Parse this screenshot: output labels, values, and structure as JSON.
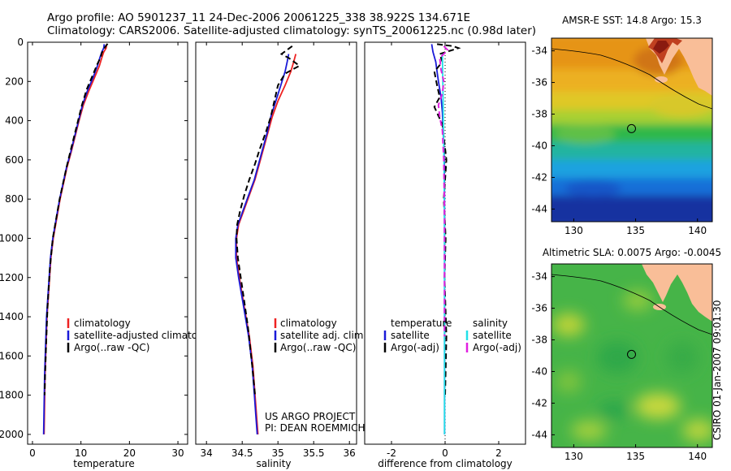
{
  "header": {
    "line1": "Argo profile: AO 5901237_11 24-Dec-2006 20061225_338 38.922S 134.671E",
    "line2": "Climatology: CARS2006. Satellite-adjusted climatology: synTS_20061225.nc (0.98d later)"
  },
  "side_label": "CSIRO 01-Jan-2007 09:01:30",
  "colors": {
    "red": "#ee2222",
    "blue": "#1a1ad8",
    "black": "#000000",
    "cyan": "#22e0e8",
    "magenta": "#e020e0",
    "land": "#f9be98"
  },
  "chart_data": [
    {
      "type": "line",
      "id": "temperature",
      "xlabel": "temperature",
      "ylabel": "",
      "xlim": [
        -1,
        32
      ],
      "ylim": [
        2050,
        0
      ],
      "xticks": [
        0,
        10,
        20,
        30
      ],
      "yticks": [
        0,
        200,
        400,
        600,
        800,
        1000,
        1200,
        1400,
        1600,
        1800,
        2000
      ],
      "legend": [
        "climatology",
        "satellite-adjusted climatolo",
        "Argo(..raw -QC)"
      ],
      "series": [
        {
          "name": "climatology",
          "color": "#ee2222",
          "style": "solid",
          "x": [
            15.3,
            15.2,
            14.7,
            14.3,
            13.8,
            12.8,
            11.6,
            10.5,
            9.6,
            8.8,
            8.0,
            7.1,
            6.4,
            5.7,
            5.0,
            4.3,
            3.8,
            3.4,
            3.0,
            2.8,
            2.6,
            2.5,
            2.4
          ],
          "y": [
            10,
            30,
            50,
            80,
            120,
            180,
            250,
            320,
            400,
            480,
            560,
            640,
            720,
            800,
            900,
            1000,
            1100,
            1250,
            1400,
            1550,
            1700,
            1850,
            2000
          ]
        },
        {
          "name": "satellite",
          "color": "#1a1ad8",
          "style": "solid",
          "x": [
            14.8,
            14.7,
            14.3,
            13.9,
            13.4,
            12.5,
            11.3,
            10.3,
            9.5,
            8.7,
            7.9,
            7.0,
            6.3,
            5.6,
            4.9,
            4.2,
            3.7,
            3.3,
            2.9,
            2.7,
            2.5,
            2.4,
            2.3
          ],
          "y": [
            10,
            30,
            50,
            80,
            120,
            180,
            250,
            320,
            400,
            480,
            560,
            640,
            720,
            800,
            900,
            1000,
            1100,
            1250,
            1400,
            1550,
            1700,
            1850,
            2000
          ]
        },
        {
          "name": "argo",
          "color": "#000000",
          "style": "dash",
          "x": [
            15.5,
            15.1,
            14.6,
            14.3,
            14.1,
            13.4,
            12.4,
            11.2,
            10.2,
            9.4,
            8.6,
            7.8,
            7.0,
            6.3,
            5.6,
            4.9,
            4.2,
            3.6,
            3.1,
            2.8,
            2.6,
            2.5
          ],
          "y": [
            8,
            20,
            40,
            55,
            75,
            110,
            170,
            240,
            320,
            400,
            480,
            560,
            640,
            720,
            800,
            900,
            1000,
            1150,
            1350,
            1550,
            1700,
            1800
          ]
        }
      ]
    },
    {
      "type": "line",
      "id": "salinity",
      "xlabel": "salinity",
      "ylabel": "",
      "xlim": [
        33.85,
        36.1
      ],
      "ylim": [
        2050,
        0
      ],
      "xticks": [
        34,
        34.5,
        35,
        35.5,
        36
      ],
      "yticks": [],
      "legend": [
        "climatology",
        "satellite adj. clim.",
        "Argo(..raw -QC)"
      ],
      "annotations": [
        "US ARGO PROJECT",
        "PI: DEAN ROEMMICH"
      ],
      "series": [
        {
          "name": "climatology",
          "color": "#ee2222",
          "style": "solid",
          "x": [
            35.25,
            35.22,
            35.18,
            35.1,
            35.0,
            34.92,
            34.86,
            34.8,
            34.74,
            34.68,
            34.6,
            34.52,
            34.45,
            34.42,
            34.42,
            34.46,
            34.53,
            34.6,
            34.65,
            34.68,
            34.7,
            34.72
          ],
          "y": [
            60,
            100,
            150,
            220,
            300,
            380,
            460,
            540,
            620,
            700,
            780,
            860,
            930,
            1000,
            1100,
            1200,
            1350,
            1500,
            1650,
            1800,
            1900,
            2000
          ]
        },
        {
          "name": "satellite",
          "color": "#1a1ad8",
          "style": "solid",
          "x": [
            35.15,
            35.13,
            35.1,
            35.04,
            34.97,
            34.9,
            34.85,
            34.79,
            34.73,
            34.67,
            34.59,
            34.51,
            34.44,
            34.41,
            34.41,
            34.45,
            34.52,
            34.59,
            34.64,
            34.67,
            34.69,
            34.71
          ],
          "y": [
            60,
            100,
            150,
            220,
            300,
            380,
            460,
            540,
            620,
            700,
            780,
            860,
            930,
            1000,
            1100,
            1200,
            1350,
            1500,
            1650,
            1800,
            1900,
            2000
          ]
        },
        {
          "name": "argo",
          "color": "#000000",
          "style": "dash",
          "x": [
            35.2,
            35.05,
            35.15,
            35.3,
            35.1,
            35.0,
            34.95,
            34.9,
            34.83,
            34.75,
            34.68,
            34.6,
            34.53,
            34.47,
            34.43,
            34.42,
            34.44,
            34.5,
            34.58,
            34.64,
            34.68
          ],
          "y": [
            20,
            60,
            80,
            120,
            160,
            220,
            300,
            380,
            460,
            540,
            620,
            700,
            780,
            860,
            930,
            1000,
            1100,
            1250,
            1450,
            1650,
            1800
          ]
        }
      ]
    },
    {
      "type": "line",
      "id": "difference",
      "xlabel": "difference from climatology",
      "ylabel": "",
      "xlim": [
        -3,
        3
      ],
      "ylim": [
        2050,
        0
      ],
      "xticks": [
        -2,
        0,
        2
      ],
      "yticks": [],
      "legend_temperature": {
        "title": "temperature",
        "items": [
          "satellite",
          "Argo(-adj)"
        ]
      },
      "legend_salinity": {
        "title": "salinity",
        "items": [
          "satellite",
          "Argo(-adj)"
        ]
      },
      "series": [
        {
          "name": "temperature satellite",
          "color": "#1a1ad8",
          "style": "solid",
          "x": [
            -0.5,
            -0.45,
            -0.35,
            -0.3,
            -0.25,
            -0.15,
            -0.1,
            -0.08,
            -0.05,
            -0.03,
            -0.02,
            -0.02,
            -0.02,
            -0.02
          ],
          "y": [
            10,
            50,
            100,
            150,
            200,
            280,
            360,
            440,
            520,
            600,
            800,
            1200,
            1600,
            2000
          ]
        },
        {
          "name": "temperature argo",
          "color": "#000000",
          "style": "dash",
          "x": [
            -0.3,
            0.3,
            0.5,
            -0.2,
            -0.1,
            -0.4,
            -0.3,
            -0.2,
            -0.4,
            -0.1,
            0.05,
            -0.05,
            0.02,
            -0.02,
            0.05,
            0.0
          ],
          "y": [
            10,
            20,
            30,
            60,
            100,
            150,
            220,
            280,
            330,
            420,
            600,
            800,
            1000,
            1200,
            1500,
            1800
          ]
        },
        {
          "name": "salinity satellite",
          "color": "#22e0e8",
          "style": "solid",
          "x": [
            -0.1,
            -0.09,
            -0.08,
            -0.07,
            -0.06,
            -0.05,
            -0.04,
            -0.03,
            -0.02,
            -0.02,
            -0.02,
            -0.02
          ],
          "y": [
            60,
            150,
            250,
            350,
            450,
            550,
            650,
            800,
            1000,
            1300,
            1600,
            2000
          ]
        },
        {
          "name": "salinity argo",
          "color": "#e020e0",
          "style": "dash",
          "x": [
            -0.05,
            0.1,
            -0.2,
            -0.15,
            -0.05,
            -0.1,
            -0.25,
            -0.2,
            -0.1,
            -0.05,
            -0.02,
            -0.02
          ],
          "y": [
            20,
            40,
            80,
            140,
            200,
            260,
            320,
            380,
            450,
            600,
            900,
            1500
          ]
        }
      ]
    },
    {
      "type": "heatmap",
      "id": "sst_map",
      "title": "AMSR-E SST: 14.8 Argo: 15.3",
      "xlim": [
        128.2,
        141.2
      ],
      "ylim": [
        -44.8,
        -33.2
      ],
      "xticks": [
        130,
        135,
        140
      ],
      "yticks": [
        -34,
        -36,
        -38,
        -40,
        -42,
        -44
      ],
      "marker": {
        "lon": 134.67,
        "lat": -38.92
      }
    },
    {
      "type": "heatmap",
      "id": "sla_map",
      "title": "Altimetric SLA: 0.0075 Argo: -0.0045",
      "xlim": [
        128.2,
        141.2
      ],
      "ylim": [
        -44.8,
        -33.2
      ],
      "xticks": [
        130,
        135,
        140
      ],
      "yticks": [
        -34,
        -36,
        -38,
        -40,
        -42,
        -44
      ],
      "marker": {
        "lon": 134.67,
        "lat": -38.92
      }
    }
  ]
}
